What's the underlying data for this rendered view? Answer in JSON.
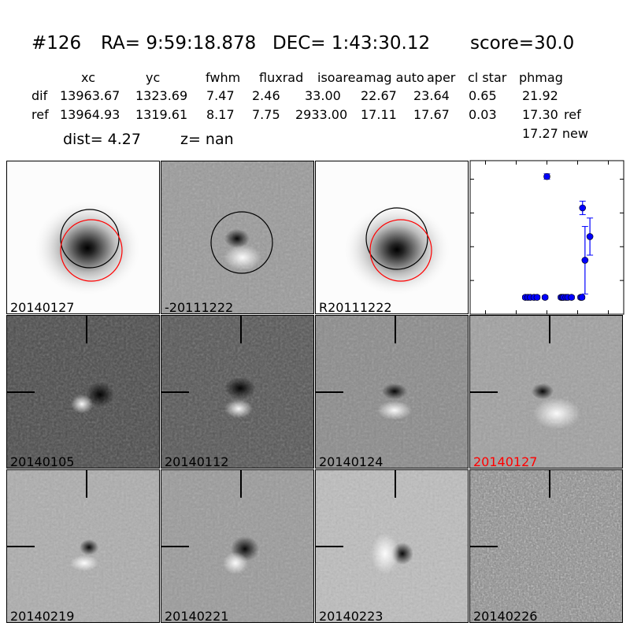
{
  "header": {
    "id": "#126",
    "ra": "RA= 9:59:18.878",
    "dec": "DEC= 1:43:30.12",
    "score": "score=30.0",
    "columns": [
      "xc",
      "yc",
      "fwhm",
      "fluxrad",
      "isoarea",
      "mag auto",
      "aper",
      "cl star",
      "phmag"
    ],
    "rows": [
      {
        "label": "dif",
        "values": [
          "13963.67",
          "1323.69",
          "7.47",
          "2.46",
          "33.00",
          "22.67",
          "23.64",
          "0.65",
          "21.92"
        ],
        "suffix": ""
      },
      {
        "label": "ref",
        "values": [
          "13964.93",
          "1319.61",
          "8.17",
          "7.75",
          "2933.00",
          "17.11",
          "17.67",
          "0.03",
          "17.30"
        ],
        "suffix": "ref"
      }
    ],
    "new_mag": "17.27 new",
    "dist": "dist=  4.27",
    "z": "z=   nan"
  },
  "panels_top": [
    {
      "label": "20140127",
      "type": "new"
    },
    {
      "label": "-20111222",
      "type": "diff"
    },
    {
      "label": "R20111222",
      "type": "ref"
    }
  ],
  "panels_grid": [
    {
      "label": "20140105",
      "label_color": "#000000",
      "bg": "#4a4a4a"
    },
    {
      "label": "20140112",
      "label_color": "#000000",
      "bg": "#555555"
    },
    {
      "label": "20140124",
      "label_color": "#000000",
      "bg": "#8a8a8a"
    },
    {
      "label": "20140127",
      "label_color": "#ff0000",
      "bg": "#a0a0a0"
    },
    {
      "label": "20140219",
      "label_color": "#000000",
      "bg": "#adadad"
    },
    {
      "label": "20140221",
      "label_color": "#000000",
      "bg": "#9a9a9a"
    },
    {
      "label": "20140223",
      "label_color": "#000000",
      "bg": "#bdbdbd"
    },
    {
      "label": "20140226",
      "label_color": "#000000",
      "bg": "#888888"
    }
  ],
  "chart_data": {
    "type": "scatter",
    "xlim": [
      -125,
      125
    ],
    "ylim": [
      26,
      21.45
    ],
    "y_inverted": true,
    "xticks": [
      -100,
      -50,
      0,
      50,
      100
    ],
    "yticks": [
      22,
      23,
      24,
      25,
      26
    ],
    "color": "#0000ff",
    "points": [
      {
        "x": -35,
        "y": 25.5,
        "err": 0.05
      },
      {
        "x": -31,
        "y": 25.5,
        "err": 0.05
      },
      {
        "x": -27,
        "y": 25.5,
        "err": 0.05
      },
      {
        "x": -21,
        "y": 25.5,
        "err": 0.05
      },
      {
        "x": -16,
        "y": 25.5,
        "err": 0.05
      },
      {
        "x": -3,
        "y": 25.5,
        "err": 0.05
      },
      {
        "x": 0,
        "y": 21.92,
        "err": 0.08
      },
      {
        "x": 23,
        "y": 25.5,
        "err": 0.05
      },
      {
        "x": 25,
        "y": 25.5,
        "err": 0.05
      },
      {
        "x": 27,
        "y": 25.5,
        "err": 0.05
      },
      {
        "x": 31,
        "y": 25.5,
        "err": 0.05
      },
      {
        "x": 34,
        "y": 25.5,
        "err": 0.05
      },
      {
        "x": 40,
        "y": 25.5,
        "err": 0.05
      },
      {
        "x": 55,
        "y": 25.5,
        "err": 0.05
      },
      {
        "x": 57,
        "y": 25.5,
        "err": 0.05
      },
      {
        "x": 58,
        "y": 22.85,
        "err": 0.2
      },
      {
        "x": 62,
        "y": 24.4,
        "err": 1.0
      },
      {
        "x": 70,
        "y": 23.7,
        "err": 0.55
      }
    ]
  }
}
